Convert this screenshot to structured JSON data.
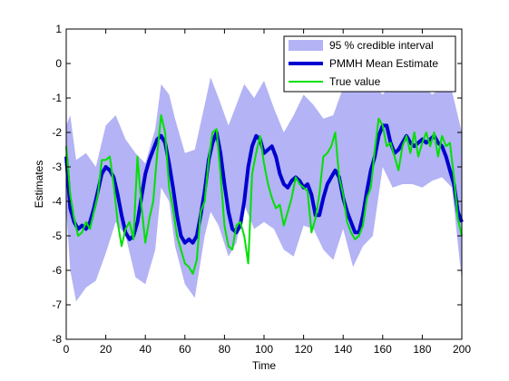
{
  "chart_data": {
    "type": "line",
    "title": "",
    "xlabel": "Time",
    "ylabel": "Estimates",
    "xlim": [
      0,
      200
    ],
    "ylim": [
      -8,
      1
    ],
    "xticks": [
      0,
      20,
      40,
      60,
      80,
      100,
      120,
      140,
      160,
      180,
      200
    ],
    "yticks": [
      1,
      0,
      -1,
      -2,
      -3,
      -4,
      -5,
      -6,
      -7,
      -8
    ],
    "grid": false,
    "legend_position": "top-right",
    "interval": {
      "name": "95 % credible interval",
      "color": "#b3b3f5",
      "x": [
        0,
        2,
        5,
        10,
        15,
        20,
        25,
        30,
        35,
        40,
        45,
        48,
        52,
        55,
        60,
        65,
        70,
        73,
        77,
        82,
        86,
        90,
        95,
        100,
        105,
        110,
        115,
        120,
        125,
        130,
        135,
        140,
        145,
        150,
        155,
        160,
        165,
        170,
        175,
        180,
        185,
        190,
        195,
        200
      ],
      "upper": [
        -1.8,
        -1.5,
        -2.8,
        -2.6,
        -3.0,
        -1.8,
        -1.5,
        -2.2,
        -2.6,
        -2.9,
        -1.9,
        -0.6,
        -0.9,
        -1.6,
        -2.6,
        -2.5,
        -1.2,
        -0.4,
        -1.0,
        -1.8,
        -1.2,
        -0.6,
        -1.0,
        -0.5,
        -1.3,
        -2.0,
        -1.5,
        -0.9,
        -1.2,
        -1.6,
        -1.5,
        -0.7,
        -0.2,
        -0.4,
        -0.6,
        -0.9,
        -0.6,
        -0.6,
        -0.7,
        -0.6,
        -0.9,
        -0.7,
        -0.8,
        -2.0
      ],
      "lower": [
        -4.2,
        -6.0,
        -6.9,
        -6.5,
        -6.3,
        -5.5,
        -4.6,
        -5.0,
        -6.2,
        -6.4,
        -5.4,
        -3.6,
        -4.0,
        -5.3,
        -6.4,
        -6.8,
        -5.0,
        -4.3,
        -4.7,
        -5.6,
        -5.2,
        -4.1,
        -4.8,
        -4.6,
        -4.8,
        -5.4,
        -5.6,
        -4.7,
        -4.8,
        -5.4,
        -5.7,
        -4.8,
        -5.9,
        -5.3,
        -5.0,
        -3.0,
        -3.6,
        -3.5,
        -3.5,
        -3.6,
        -3.4,
        -3.3,
        -3.6,
        -6.3
      ]
    },
    "series": [
      {
        "name": "PMMH Mean Estimate",
        "color": "#0000d0",
        "x": [
          0,
          2,
          4,
          6,
          8,
          10,
          12,
          14,
          16,
          18,
          20,
          22,
          24,
          26,
          28,
          30,
          32,
          34,
          36,
          38,
          40,
          42,
          44,
          46,
          48,
          50,
          52,
          54,
          56,
          58,
          60,
          62,
          64,
          66,
          68,
          70,
          72,
          74,
          76,
          78,
          80,
          82,
          84,
          86,
          88,
          90,
          92,
          94,
          96,
          98,
          100,
          102,
          104,
          106,
          108,
          110,
          112,
          114,
          116,
          118,
          120,
          122,
          124,
          126,
          128,
          130,
          132,
          134,
          136,
          138,
          140,
          142,
          144,
          146,
          148,
          150,
          152,
          154,
          156,
          158,
          160,
          162,
          164,
          166,
          168,
          170,
          172,
          174,
          176,
          178,
          180,
          182,
          184,
          186,
          188,
          190,
          192,
          194,
          196,
          198,
          200
        ],
        "values": [
          -2.7,
          -4.2,
          -4.6,
          -4.8,
          -4.7,
          -4.8,
          -4.6,
          -4.2,
          -3.7,
          -3.2,
          -3.0,
          -3.1,
          -3.3,
          -3.8,
          -4.4,
          -4.9,
          -5.1,
          -5.0,
          -4.6,
          -3.9,
          -3.2,
          -2.8,
          -2.5,
          -2.2,
          -2.1,
          -2.3,
          -2.9,
          -3.6,
          -4.4,
          -5.0,
          -5.2,
          -5.1,
          -5.2,
          -5.0,
          -4.4,
          -3.7,
          -2.8,
          -2.3,
          -2.0,
          -2.6,
          -3.5,
          -4.3,
          -4.8,
          -4.9,
          -4.7,
          -4.0,
          -3.0,
          -2.4,
          -2.1,
          -2.2,
          -2.6,
          -2.5,
          -2.4,
          -2.7,
          -3.2,
          -3.5,
          -3.6,
          -3.4,
          -3.3,
          -3.4,
          -3.6,
          -3.5,
          -3.8,
          -4.4,
          -4.4,
          -3.9,
          -3.5,
          -3.3,
          -3.1,
          -3.3,
          -3.9,
          -4.3,
          -4.6,
          -4.9,
          -4.9,
          -4.4,
          -3.7,
          -3.1,
          -2.7,
          -2.1,
          -1.8,
          -1.8,
          -2.3,
          -2.6,
          -2.5,
          -2.3,
          -2.1,
          -2.3,
          -2.4,
          -2.3,
          -2.2,
          -2.3,
          -2.2,
          -2.1,
          -2.3,
          -2.4,
          -2.7,
          -3.1,
          -3.5,
          -4.3,
          -4.6
        ]
      },
      {
        "name": "True value",
        "color": "#00e000",
        "x": [
          0,
          2,
          4,
          6,
          8,
          10,
          12,
          14,
          16,
          18,
          20,
          22,
          24,
          26,
          28,
          30,
          32,
          34,
          36,
          38,
          40,
          42,
          44,
          46,
          48,
          50,
          52,
          54,
          56,
          58,
          60,
          62,
          64,
          66,
          68,
          70,
          72,
          74,
          76,
          78,
          80,
          82,
          84,
          86,
          88,
          90,
          92,
          94,
          96,
          98,
          100,
          102,
          104,
          106,
          108,
          110,
          112,
          114,
          116,
          118,
          120,
          122,
          124,
          126,
          128,
          130,
          132,
          134,
          136,
          138,
          140,
          142,
          144,
          146,
          148,
          150,
          152,
          154,
          156,
          158,
          160,
          162,
          164,
          166,
          168,
          170,
          172,
          174,
          176,
          178,
          180,
          182,
          184,
          186,
          188,
          190,
          192,
          194,
          196,
          198,
          200
        ],
        "values": [
          -2.4,
          -3.8,
          -4.5,
          -5.0,
          -4.9,
          -4.6,
          -4.8,
          -4.3,
          -3.8,
          -2.8,
          -2.8,
          -2.7,
          -3.5,
          -4.6,
          -5.3,
          -4.8,
          -4.6,
          -5.1,
          -2.7,
          -4.1,
          -5.2,
          -4.5,
          -4.0,
          -2.6,
          -1.5,
          -2.0,
          -3.6,
          -4.2,
          -5.0,
          -5.4,
          -5.8,
          -5.9,
          -6.1,
          -5.7,
          -4.3,
          -4.0,
          -2.8,
          -2.0,
          -1.9,
          -3.2,
          -4.7,
          -5.3,
          -5.4,
          -4.7,
          -4.6,
          -5.0,
          -5.8,
          -3.2,
          -2.6,
          -2.1,
          -2.9,
          -3.5,
          -3.9,
          -4.2,
          -4.1,
          -4.7,
          -4.3,
          -3.9,
          -3.3,
          -3.5,
          -3.6,
          -3.7,
          -4.9,
          -4.5,
          -3.8,
          -2.7,
          -2.6,
          -2.4,
          -2.0,
          -3.3,
          -3.8,
          -4.6,
          -4.9,
          -5.1,
          -5.0,
          -4.7,
          -3.9,
          -3.6,
          -2.5,
          -1.6,
          -1.8,
          -2.4,
          -2.3,
          -2.7,
          -3.1,
          -2.4,
          -2.1,
          -2.6,
          -2.0,
          -2.7,
          -2.3,
          -2.0,
          -2.4,
          -2.0,
          -2.7,
          -2.1,
          -2.4,
          -2.3,
          -3.3,
          -4.5,
          -5.0
        ]
      }
    ]
  }
}
